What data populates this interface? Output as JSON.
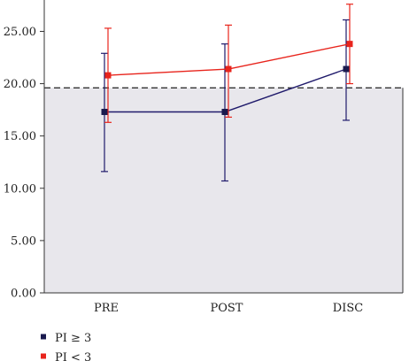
{
  "chart_data": {
    "type": "line",
    "title": "",
    "xlabel": "",
    "ylabel": "",
    "categories": [
      "PRE",
      "POST",
      "DISC"
    ],
    "ylim": [
      0,
      28
    ],
    "yticks": [
      "0.00",
      "5.00",
      "10.00",
      "15.00",
      "20.00",
      "25.00"
    ],
    "ytick_values": [
      0,
      5,
      10,
      15,
      20,
      25
    ],
    "grid": false,
    "reference_line": {
      "y": 19.6,
      "style": "dashed",
      "color": "#333333"
    },
    "shaded_region": {
      "from": 0,
      "to": 19.6,
      "color": "#e8e7ec"
    },
    "legend_position": "bottom-left",
    "series": [
      {
        "name": "PI ≥ 3",
        "color": "#1f1a6b",
        "marker_color": "#1a1a4e",
        "values": [
          17.3,
          17.3,
          21.4
        ],
        "error_low": [
          11.6,
          10.7,
          16.5
        ],
        "error_high": [
          22.9,
          23.8,
          26.1
        ]
      },
      {
        "name": "PI < 3",
        "color": "#e8241c",
        "marker_color": "#e8241c",
        "values": [
          20.8,
          21.4,
          23.8
        ],
        "error_low": [
          16.3,
          16.8,
          20.0
        ],
        "error_high": [
          25.3,
          25.6,
          27.6
        ]
      }
    ]
  }
}
